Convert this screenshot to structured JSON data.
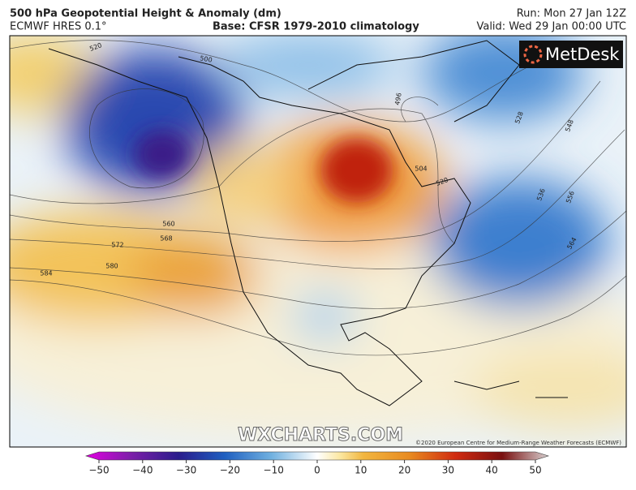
{
  "header": {
    "title": "500 hPa Geopotential Height & Anomaly (dm)",
    "model": "ECMWF HRES 0.1°",
    "base": "Base: CFSR 1979-2010 climatology",
    "run": "Run: Mon 27 Jan 12Z",
    "valid": "Valid: Wed 29 Jan 00:00 UTC"
  },
  "logo": "MetDesk",
  "watermark": "WXCHARTS.COM",
  "credit": "©2020 European Centre for Medium-Range Weather Forecasts (ECMWF)",
  "contour_labels": [
    520,
    500,
    496,
    504,
    520,
    528,
    536,
    548,
    556,
    564,
    560,
    568,
    572,
    580,
    584
  ],
  "colorbar": {
    "lim": [
      -50,
      50
    ],
    "ticks": [
      {
        "value": -50,
        "label": "−50"
      },
      {
        "value": -40,
        "label": "−40"
      },
      {
        "value": -30,
        "label": "−30"
      },
      {
        "value": -20,
        "label": "−20"
      },
      {
        "value": -10,
        "label": "−10"
      },
      0,
      10,
      20,
      30,
      40,
      50
    ]
  }
}
